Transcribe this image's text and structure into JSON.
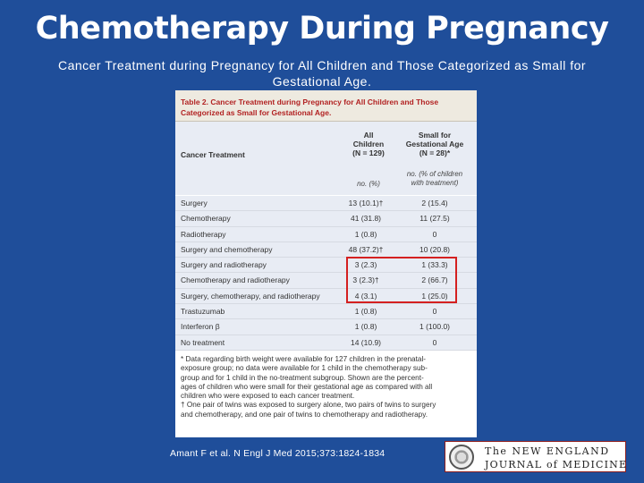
{
  "slide": {
    "title": "Chemotherapy During Pregnancy",
    "subtitle": "Cancer Treatment during Pregnancy for All Children and Those Categorized as Small for Gestational Age."
  },
  "table": {
    "label": "Table 2.",
    "caption_line1": "Cancer Treatment during Pregnancy for All Children and Those",
    "caption_line2": "Categorized as Small for Gestational Age.",
    "header": {
      "treatment": "Cancer Treatment",
      "all_line1": "All",
      "all_line2": "Children",
      "all_line3": "(N = 129)",
      "sga_line1": "Small for",
      "sga_line2": "Gestational Age",
      "sga_line3": "(N = 28)*",
      "units_all": "no. (%)",
      "units_sga_line1": "no. (% of children",
      "units_sga_line2": "with treatment)"
    },
    "rows": [
      {
        "treatment": "Surgery",
        "all": "13 (10.1)†",
        "sga": "2 (15.4)"
      },
      {
        "treatment": "Chemotherapy",
        "all": "41 (31.8)",
        "sga": "11 (27.5)"
      },
      {
        "treatment": "Radiotherapy",
        "all": "1 (0.8)",
        "sga": "0"
      },
      {
        "treatment": "Surgery and chemotherapy",
        "all": "48 (37.2)†",
        "sga": "10 (20.8)"
      },
      {
        "treatment": "Surgery and radiotherapy",
        "all": "3 (2.3)",
        "sga": "1 (33.3)"
      },
      {
        "treatment": "Chemotherapy and radiotherapy",
        "all": "3 (2.3)†",
        "sga": "2 (66.7)"
      },
      {
        "treatment": "Surgery, chemotherapy, and radiotherapy",
        "all": "4 (3.1)",
        "sga": "1 (25.0)"
      },
      {
        "treatment": "Trastuzumab",
        "all": "1 (0.8)",
        "sga": "0"
      },
      {
        "treatment": "Interferon β",
        "all": "1 (0.8)",
        "sga": "1 (100.0)"
      },
      {
        "treatment": "No treatment",
        "all": "14 (10.9)",
        "sga": "0"
      }
    ],
    "footnotes": {
      "line1": "* Data regarding birth weight were available for 127 children in the prenatal-",
      "line2": "exposure group; no data were available for 1 child in the chemotherapy sub-",
      "line3": "group and for 1 child in the no-treatment subgroup. Shown are the percent-",
      "line4": "ages of children who were small for their gestational age as compared with all",
      "line5": "children who were exposed to each cancer treatment.",
      "line6": "† One pair of twins was exposed to surgery alone, two pairs of twins to surgery",
      "line7": "and chemotherapy, and one pair of twins to chemotherapy and radiotherapy."
    }
  },
  "citation": "Amant F et al. N Engl J Med 2015;373:1824-1834",
  "logo": {
    "line1": "The NEW ENGLAND",
    "line2": "JOURNAL of MEDICINE"
  },
  "colors": {
    "background": "#1f4e9a",
    "highlight": "#d42020",
    "caption": "#b22222"
  }
}
